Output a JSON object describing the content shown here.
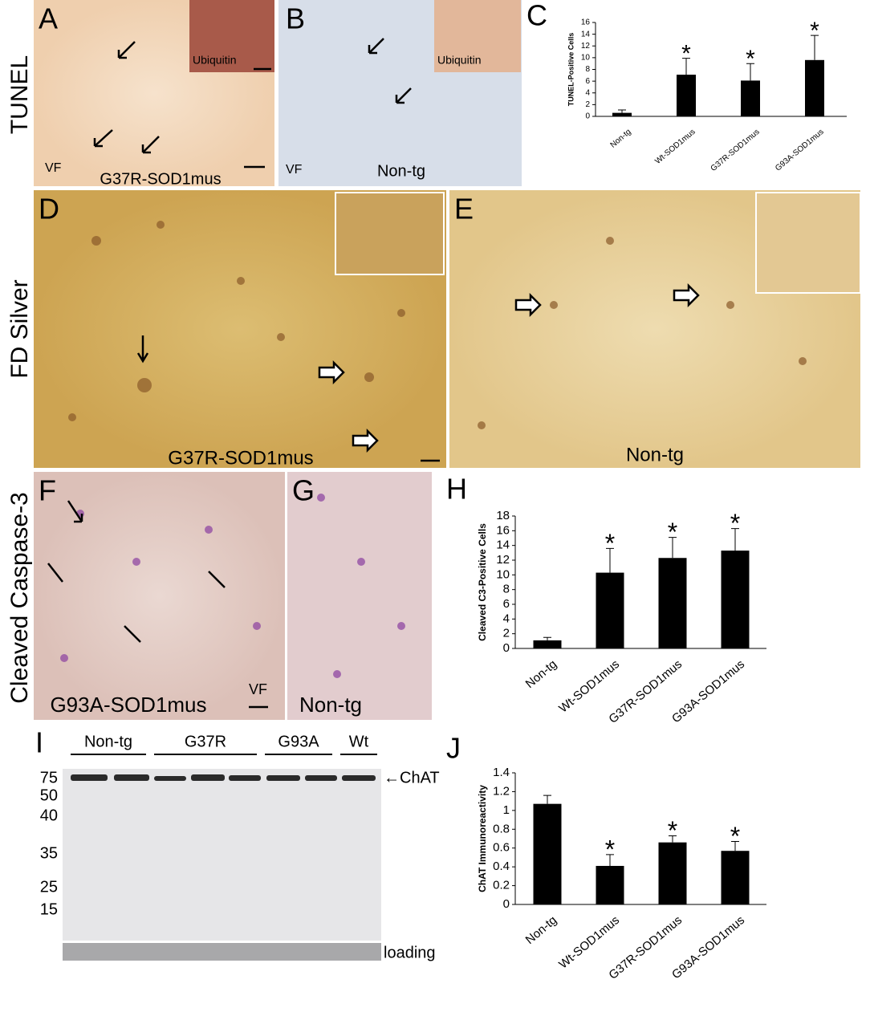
{
  "panels": {
    "letters": [
      "A",
      "B",
      "C",
      "D",
      "E",
      "F",
      "G",
      "H",
      "I",
      "J"
    ],
    "row_labels": [
      "TUNEL",
      "FD Silver",
      "Cleaved Caspase-3"
    ],
    "A": {
      "inset": "Ubiquitin",
      "region": "VF",
      "genotype": "G37R-SOD1mus"
    },
    "B": {
      "inset": "Ubiquitin",
      "region": "VF",
      "genotype": "Non-tg"
    },
    "D": {
      "genotype": "G37R-SOD1mus"
    },
    "E": {
      "genotype": "Non-tg"
    },
    "F": {
      "region": "VF",
      "genotype": "G93A-SOD1mus"
    },
    "G": {
      "genotype": "Non-tg"
    },
    "I": {
      "groups": [
        "Non-tg",
        "G37R",
        "G93A",
        "Wt"
      ],
      "markers": [
        "75",
        "50",
        "40",
        "35",
        "25",
        "15"
      ],
      "band": "←ChAT",
      "loading": "loading"
    }
  },
  "chart_data": [
    {
      "type": "bar",
      "ylabel": "TUNEL-Positive Cells",
      "categories": [
        "Non-tg",
        "Wt-SOD1mus",
        "G37R-SOD1mus",
        "G93A-SOD1mus"
      ],
      "values": [
        0.6,
        7.1,
        6.1,
        9.6
      ],
      "errors": [
        0.5,
        2.8,
        2.9,
        4.2
      ],
      "significance": [
        null,
        "*",
        "*",
        "*"
      ],
      "color": "#000000",
      "ylim": [
        0,
        16
      ],
      "yticks": [
        0,
        2,
        4,
        6,
        8,
        10,
        12,
        14,
        16
      ]
    },
    {
      "type": "bar",
      "ylabel": "Cleaved C3-Positive Cells",
      "categories": [
        "Non-tg",
        "Wt-SOD1mus",
        "G37R-SOD1mus",
        "G93A-SOD1mus"
      ],
      "values": [
        1.1,
        10.3,
        12.3,
        13.3
      ],
      "errors": [
        0.4,
        3.3,
        2.8,
        3.0
      ],
      "significance": [
        null,
        "*",
        "*",
        "*"
      ],
      "color": "#000000",
      "ylim": [
        0,
        18
      ],
      "yticks": [
        0,
        2,
        4,
        6,
        8,
        10,
        12,
        14,
        16,
        18
      ]
    },
    {
      "type": "bar",
      "ylabel": "ChAT Immunoreactivity",
      "categories": [
        "Non-tg",
        "Wt-SOD1mus",
        "G37R-SOD1mus",
        "G93A-SOD1mus"
      ],
      "values": [
        1.07,
        0.41,
        0.66,
        0.57
      ],
      "errors": [
        0.09,
        0.12,
        0.07,
        0.1
      ],
      "significance": [
        null,
        "*",
        "*",
        "*"
      ],
      "color": "#000000",
      "ylim": [
        0,
        1.4
      ],
      "yticks": [
        0,
        0.2,
        0.4,
        0.6,
        0.8,
        1,
        1.2,
        1.4
      ]
    }
  ]
}
